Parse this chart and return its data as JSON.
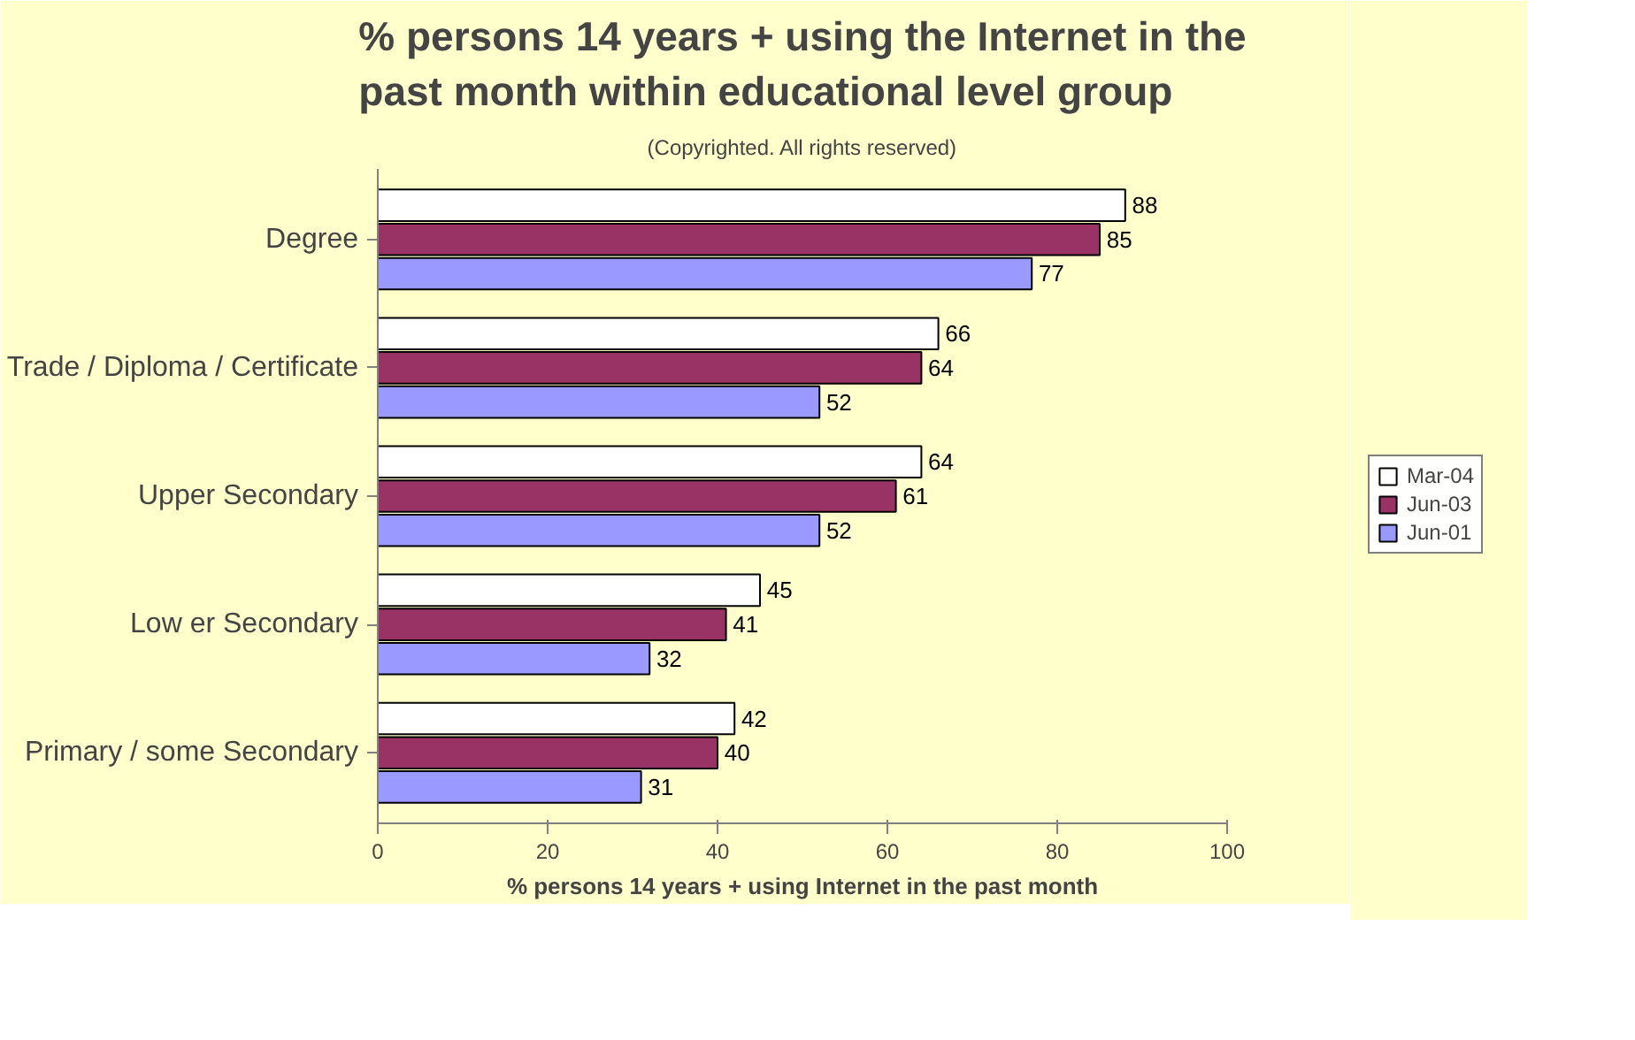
{
  "chart_data": {
    "type": "bar",
    "orientation": "horizontal",
    "title": "% persons 14 years + using the Internet in the\npast month within educational level group",
    "subtitle": "(Copyrighted. All rights reserved)",
    "xlabel": "% persons 14 years + using Internet in the past month",
    "categories": [
      "Degree",
      "Trade / Diploma / Certificate",
      "Upper Secondary",
      "Low er Secondary",
      "Primary / some Secondary"
    ],
    "series": [
      {
        "name": "Mar-04",
        "color": "#ffffff",
        "values": [
          88,
          66,
          64,
          45,
          42
        ]
      },
      {
        "name": "Jun-03",
        "color": "#993366",
        "values": [
          85,
          64,
          61,
          41,
          40
        ]
      },
      {
        "name": "Jun-01",
        "color": "#9999ff",
        "values": [
          77,
          52,
          52,
          32,
          31
        ]
      }
    ],
    "xlim": [
      0,
      100
    ],
    "xticks": [
      0,
      20,
      40,
      60,
      80,
      100
    ],
    "grid": false,
    "legend": "right",
    "data_labels": true
  }
}
